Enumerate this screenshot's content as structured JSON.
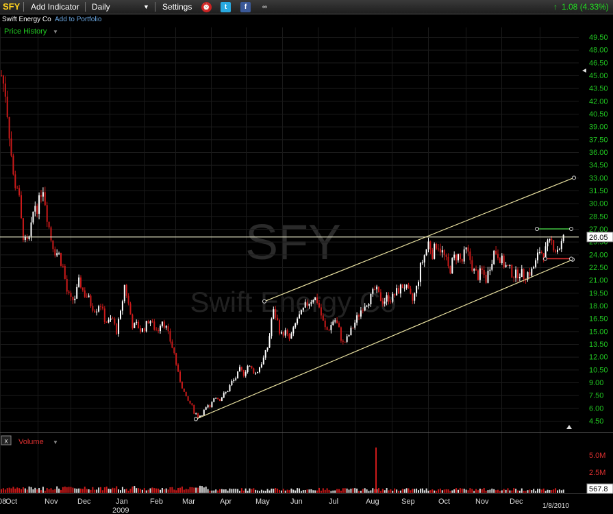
{
  "toolbar": {
    "ticker": "SFY",
    "add_indicator": "Add Indicator",
    "interval": "Daily",
    "settings": "Settings",
    "change": "1.08 (4.33%)",
    "colors": {
      "up": "#22dd22",
      "accent": "#ffd21f"
    }
  },
  "subbar": {
    "company": "Swift Energy Co",
    "add_portfolio": "Add to Portfolio",
    "panel_label": "Price History"
  },
  "watermark": {
    "symbol": "SFY",
    "name": "Swift Energy Co"
  },
  "chart_data": {
    "type": "candlestick",
    "price_axis": {
      "ticks": [
        "49.50",
        "48.00",
        "46.50",
        "45.00",
        "43.50",
        "42.00",
        "40.50",
        "39.00",
        "37.50",
        "36.00",
        "34.50",
        "33.00",
        "31.50",
        "30.00",
        "28.50",
        "27.00",
        "25.50",
        "24.00",
        "22.50",
        "21.00",
        "19.50",
        "18.00",
        "16.50",
        "15.00",
        "13.50",
        "12.00",
        "10.50",
        "9.00",
        "7.50",
        "6.00",
        "4.50"
      ],
      "range": [
        4.5,
        49.5
      ],
      "last_price": "26.05"
    },
    "volume_axis": {
      "ticks": [
        "5.0M",
        "2.5M"
      ],
      "last_volume": "567.8"
    },
    "volume_label": "Volume",
    "x_labels": [
      "Oct",
      "Nov",
      "Dec",
      "Jan",
      "Feb",
      "Mar",
      "Apr",
      "May",
      "Jun",
      "Jul",
      "Aug",
      "Sep",
      "Oct",
      "Nov",
      "Dec"
    ],
    "year_labels": [
      "08",
      "2009"
    ],
    "date_label": "1/8/2010",
    "anchors": [
      {
        "t": 0,
        "p": 45.0
      },
      {
        "t": 6,
        "p": 43.0
      },
      {
        "t": 12,
        "p": 38.0
      },
      {
        "t": 18,
        "p": 32.5
      },
      {
        "t": 24,
        "p": 32.0
      },
      {
        "t": 30,
        "p": 27.0
      },
      {
        "t": 36,
        "p": 25.0
      },
      {
        "t": 42,
        "p": 26.0
      },
      {
        "t": 48,
        "p": 30.0
      },
      {
        "t": 54,
        "p": 29.5
      },
      {
        "t": 60,
        "p": 32.5
      },
      {
        "t": 66,
        "p": 29.0
      },
      {
        "t": 72,
        "p": 26.0
      },
      {
        "t": 78,
        "p": 24.5
      },
      {
        "t": 84,
        "p": 24.0
      },
      {
        "t": 90,
        "p": 22.5
      },
      {
        "t": 96,
        "p": 19.5
      },
      {
        "t": 102,
        "p": 18.5
      },
      {
        "t": 108,
        "p": 19.0
      },
      {
        "t": 114,
        "p": 21.0
      },
      {
        "t": 120,
        "p": 19.5
      },
      {
        "t": 126,
        "p": 19.0
      },
      {
        "t": 132,
        "p": 18.0
      },
      {
        "t": 138,
        "p": 17.5
      },
      {
        "t": 144,
        "p": 18.5
      },
      {
        "t": 150,
        "p": 16.5
      },
      {
        "t": 156,
        "p": 16.0
      },
      {
        "t": 162,
        "p": 16.5
      },
      {
        "t": 168,
        "p": 15.0
      },
      {
        "t": 174,
        "p": 17.0
      },
      {
        "t": 180,
        "p": 20.5
      },
      {
        "t": 186,
        "p": 18.0
      },
      {
        "t": 192,
        "p": 15.5
      },
      {
        "t": 198,
        "p": 15.8
      },
      {
        "t": 204,
        "p": 15.0
      },
      {
        "t": 210,
        "p": 15.5
      },
      {
        "t": 216,
        "p": 16.5
      },
      {
        "t": 222,
        "p": 15.5
      },
      {
        "t": 228,
        "p": 15.0
      },
      {
        "t": 234,
        "p": 16.5
      },
      {
        "t": 240,
        "p": 15.5
      },
      {
        "t": 246,
        "p": 14.0
      },
      {
        "t": 252,
        "p": 12.5
      },
      {
        "t": 258,
        "p": 10.0
      },
      {
        "t": 264,
        "p": 8.5
      },
      {
        "t": 270,
        "p": 7.0
      },
      {
        "t": 276,
        "p": 6.5
      },
      {
        "t": 282,
        "p": 5.5
      },
      {
        "t": 288,
        "p": 5.0
      },
      {
        "t": 294,
        "p": 5.5
      },
      {
        "t": 300,
        "p": 6.0
      },
      {
        "t": 306,
        "p": 6.5
      },
      {
        "t": 312,
        "p": 7.5
      },
      {
        "t": 318,
        "p": 7.0
      },
      {
        "t": 324,
        "p": 7.5
      },
      {
        "t": 330,
        "p": 8.0
      },
      {
        "t": 336,
        "p": 9.0
      },
      {
        "t": 342,
        "p": 9.5
      },
      {
        "t": 348,
        "p": 10.5
      },
      {
        "t": 354,
        "p": 10.0
      },
      {
        "t": 360,
        "p": 11.0
      },
      {
        "t": 366,
        "p": 10.5
      },
      {
        "t": 372,
        "p": 10.0
      },
      {
        "t": 378,
        "p": 11.0
      },
      {
        "t": 384,
        "p": 12.0
      },
      {
        "t": 390,
        "p": 13.5
      },
      {
        "t": 396,
        "p": 17.5
      },
      {
        "t": 402,
        "p": 16.5
      },
      {
        "t": 408,
        "p": 14.5
      },
      {
        "t": 414,
        "p": 15.0
      },
      {
        "t": 420,
        "p": 14.0
      },
      {
        "t": 426,
        "p": 15.0
      },
      {
        "t": 432,
        "p": 16.5
      },
      {
        "t": 438,
        "p": 17.0
      },
      {
        "t": 444,
        "p": 18.0
      },
      {
        "t": 450,
        "p": 18.5
      },
      {
        "t": 456,
        "p": 19.0
      },
      {
        "t": 462,
        "p": 18.5
      },
      {
        "t": 468,
        "p": 16.5
      },
      {
        "t": 474,
        "p": 15.0
      },
      {
        "t": 480,
        "p": 15.5
      },
      {
        "t": 486,
        "p": 16.5
      },
      {
        "t": 492,
        "p": 15.5
      },
      {
        "t": 498,
        "p": 13.5
      },
      {
        "t": 504,
        "p": 14.0
      },
      {
        "t": 510,
        "p": 15.0
      },
      {
        "t": 516,
        "p": 16.0
      },
      {
        "t": 522,
        "p": 17.0
      },
      {
        "t": 528,
        "p": 18.0
      },
      {
        "t": 534,
        "p": 18.5
      },
      {
        "t": 540,
        "p": 19.0
      },
      {
        "t": 546,
        "p": 20.0
      },
      {
        "t": 552,
        "p": 19.0
      },
      {
        "t": 558,
        "p": 18.5
      },
      {
        "t": 564,
        "p": 19.0
      },
      {
        "t": 570,
        "p": 18.8
      },
      {
        "t": 576,
        "p": 19.5
      },
      {
        "t": 582,
        "p": 20.0
      },
      {
        "t": 588,
        "p": 20.5
      },
      {
        "t": 594,
        "p": 19.5
      },
      {
        "t": 600,
        "p": 18.5
      },
      {
        "t": 606,
        "p": 20.0
      },
      {
        "t": 612,
        "p": 22.5
      },
      {
        "t": 618,
        "p": 24.0
      },
      {
        "t": 624,
        "p": 25.5
      },
      {
        "t": 630,
        "p": 24.0
      },
      {
        "t": 636,
        "p": 25.5
      },
      {
        "t": 642,
        "p": 24.5
      },
      {
        "t": 648,
        "p": 23.5
      },
      {
        "t": 654,
        "p": 22.0
      },
      {
        "t": 660,
        "p": 23.5
      },
      {
        "t": 666,
        "p": 24.0
      },
      {
        "t": 672,
        "p": 23.0
      },
      {
        "t": 678,
        "p": 24.5
      },
      {
        "t": 684,
        "p": 23.5
      },
      {
        "t": 690,
        "p": 22.0
      },
      {
        "t": 696,
        "p": 21.5
      },
      {
        "t": 702,
        "p": 22.0
      },
      {
        "t": 708,
        "p": 21.0
      },
      {
        "t": 714,
        "p": 23.0
      },
      {
        "t": 720,
        "p": 24.5
      },
      {
        "t": 726,
        "p": 24.0
      },
      {
        "t": 732,
        "p": 23.0
      },
      {
        "t": 738,
        "p": 22.5
      },
      {
        "t": 744,
        "p": 22.0
      },
      {
        "t": 750,
        "p": 21.5
      },
      {
        "t": 756,
        "p": 22.0
      },
      {
        "t": 762,
        "p": 21.5
      },
      {
        "t": 768,
        "p": 21.8
      },
      {
        "t": 774,
        "p": 22.0
      },
      {
        "t": 780,
        "p": 23.0
      },
      {
        "t": 786,
        "p": 24.5
      },
      {
        "t": 792,
        "p": 24.0
      },
      {
        "t": 798,
        "p": 25.0
      },
      {
        "t": 804,
        "p": 25.5
      },
      {
        "t": 810,
        "p": 24.5
      },
      {
        "t": 816,
        "p": 25.0
      },
      {
        "t": 822,
        "p": 26.05
      }
    ],
    "channel_lines": [
      {
        "from": {
          "t": 386,
          "p": 18.5
        },
        "to": {
          "t": 838,
          "p": 33.0
        }
      },
      {
        "from": {
          "t": 286,
          "p": 4.7
        },
        "to": {
          "t": 836,
          "p": 23.4
        }
      }
    ],
    "horizontal_line": 26.05,
    "marker_lines": [
      {
        "from": {
          "t": 784,
          "p": 27.0
        },
        "to": {
          "t": 834,
          "p": 27.0
        },
        "color": "#3fbf3f"
      },
      {
        "from": {
          "t": 796,
          "p": 23.5
        },
        "to": {
          "t": 834,
          "p": 23.5
        },
        "color": "#e03030"
      }
    ]
  }
}
